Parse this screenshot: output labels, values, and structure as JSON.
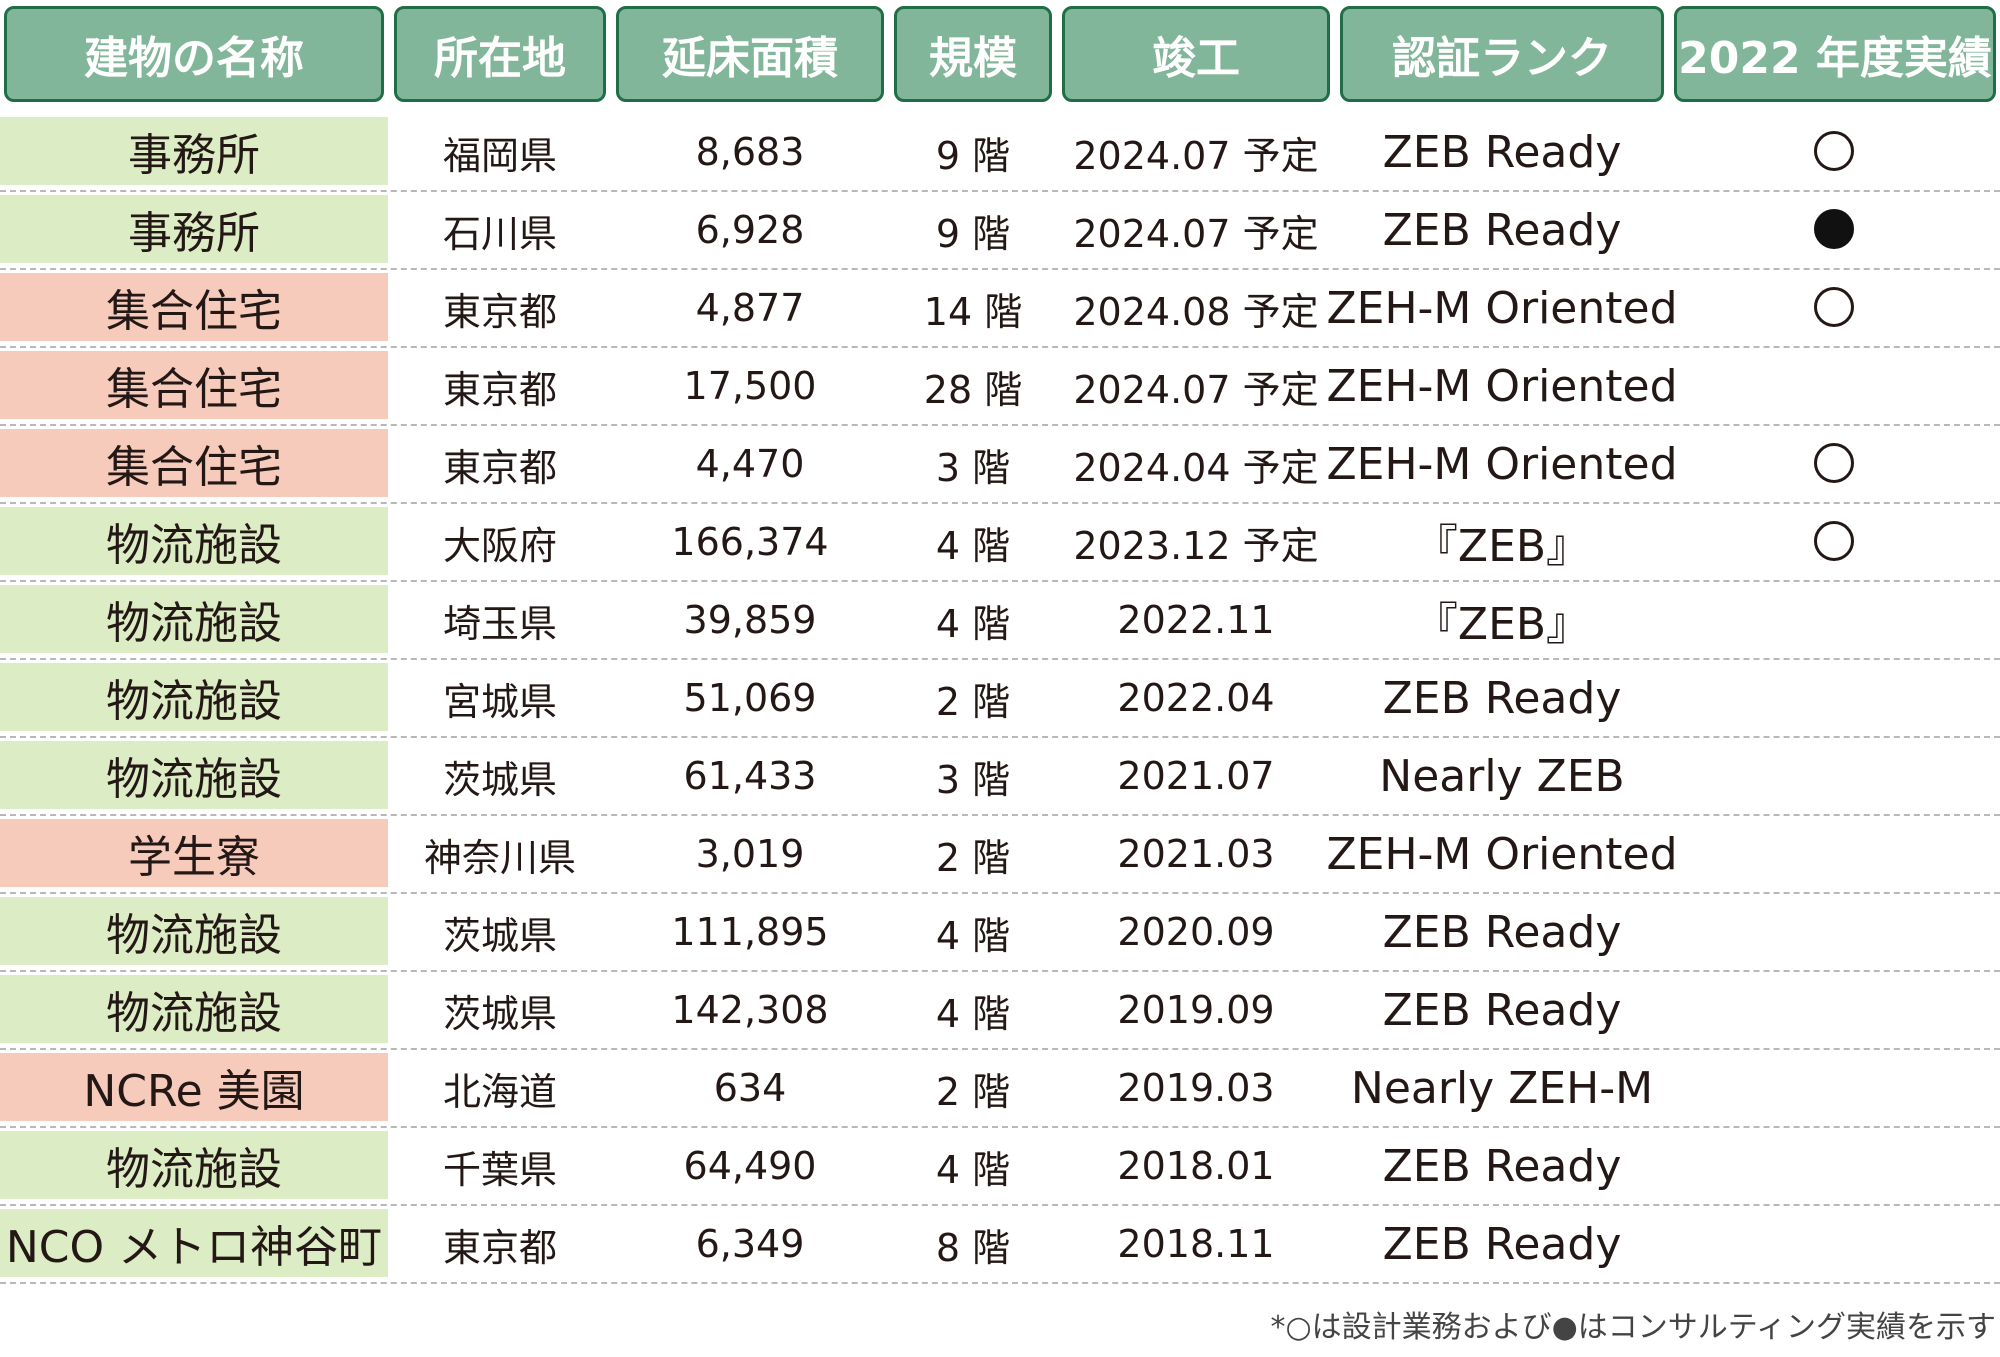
{
  "headers": [
    "建物の名称",
    "所在地",
    "延床面積",
    "規模",
    "竣工",
    "認証ランク",
    "2022 年度実績"
  ],
  "rows": [
    {
      "name": "事務所",
      "loc": "福岡県",
      "area": "8,683",
      "scale": "9 階",
      "date": "2024.07 予定",
      "rank": "ZEB Ready",
      "mark": "open",
      "cat": "g"
    },
    {
      "name": "事務所",
      "loc": "石川県",
      "area": "6,928",
      "scale": "9 階",
      "date": "2024.07 予定",
      "rank": "ZEB Ready",
      "mark": "filled",
      "cat": "g"
    },
    {
      "name": "集合住宅",
      "loc": "東京都",
      "area": "4,877",
      "scale": "14 階",
      "date": "2024.08 予定",
      "rank": "ZEH-M Oriented",
      "mark": "open",
      "cat": "p"
    },
    {
      "name": "集合住宅",
      "loc": "東京都",
      "area": "17,500",
      "scale": "28 階",
      "date": "2024.07 予定",
      "rank": "ZEH-M Oriented",
      "mark": "",
      "cat": "p"
    },
    {
      "name": "集合住宅",
      "loc": "東京都",
      "area": "4,470",
      "scale": "3 階",
      "date": "2024.04 予定",
      "rank": "ZEH-M Oriented",
      "mark": "open",
      "cat": "p"
    },
    {
      "name": "物流施設",
      "loc": "大阪府",
      "area": "166,374",
      "scale": "4 階",
      "date": "2023.12 予定",
      "rank": "『ZEB』",
      "mark": "open",
      "cat": "g"
    },
    {
      "name": "物流施設",
      "loc": "埼玉県",
      "area": "39,859",
      "scale": "4 階",
      "date": "2022.11",
      "rank": "『ZEB』",
      "mark": "",
      "cat": "g"
    },
    {
      "name": "物流施設",
      "loc": "宮城県",
      "area": "51,069",
      "scale": "2 階",
      "date": "2022.04",
      "rank": "ZEB Ready",
      "mark": "",
      "cat": "g"
    },
    {
      "name": "物流施設",
      "loc": "茨城県",
      "area": "61,433",
      "scale": "3 階",
      "date": "2021.07",
      "rank": "Nearly ZEB",
      "mark": "",
      "cat": "g"
    },
    {
      "name": "学生寮",
      "loc": "神奈川県",
      "area": "3,019",
      "scale": "2 階",
      "date": "2021.03",
      "rank": "ZEH-M Oriented",
      "mark": "",
      "cat": "p"
    },
    {
      "name": "物流施設",
      "loc": "茨城県",
      "area": "111,895",
      "scale": "4 階",
      "date": "2020.09",
      "rank": "ZEB Ready",
      "mark": "",
      "cat": "g"
    },
    {
      "name": "物流施設",
      "loc": "茨城県",
      "area": "142,308",
      "scale": "4 階",
      "date": "2019.09",
      "rank": "ZEB Ready",
      "mark": "",
      "cat": "g"
    },
    {
      "name": "NCRe 美園",
      "loc": "北海道",
      "area": "634",
      "scale": "2 階",
      "date": "2019.03",
      "rank": "Nearly ZEH-M",
      "mark": "",
      "cat": "p"
    },
    {
      "name": "物流施設",
      "loc": "千葉県",
      "area": "64,490",
      "scale": "4 階",
      "date": "2018.01",
      "rank": "ZEB Ready",
      "mark": "",
      "cat": "g"
    },
    {
      "name": "NCO メトロ神谷町",
      "loc": "東京都",
      "area": "6,349",
      "scale": "8 階",
      "date": "2018.11",
      "rank": "ZEB Ready",
      "mark": "",
      "cat": "g"
    }
  ],
  "colors": {
    "header_fill": "#82b69a",
    "header_border": "#1f6e45",
    "office_logistics": "#dcecc4",
    "residential": "#f6cbbb"
  },
  "footnote": "*○は設計業務および●はコンサルティング実績を示す"
}
